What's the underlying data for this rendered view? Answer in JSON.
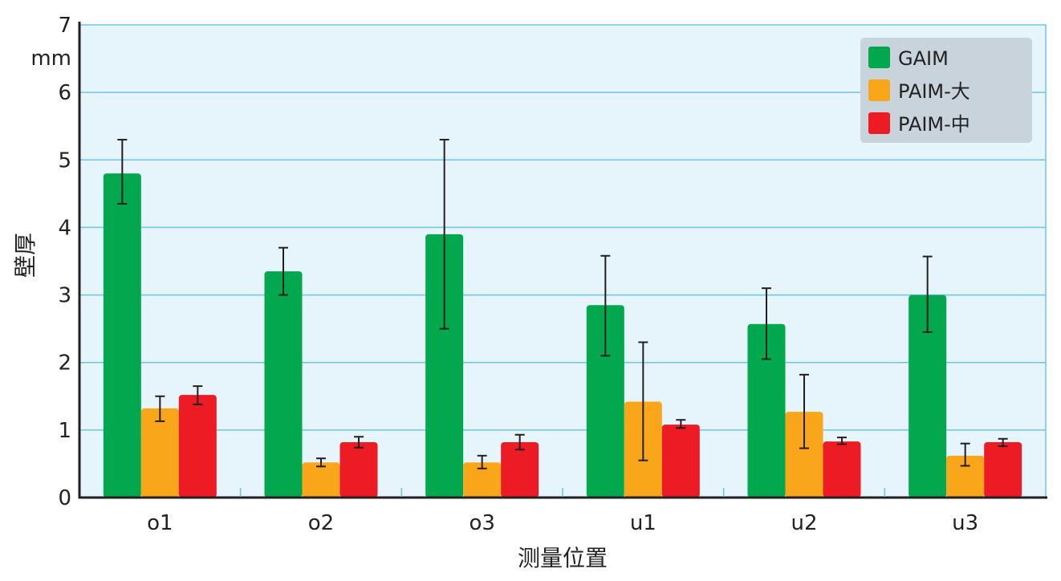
{
  "chart_data": {
    "type": "bar",
    "categories": [
      "o1",
      "o2",
      "o3",
      "u1",
      "u2",
      "u3"
    ],
    "series": [
      {
        "name": "GAIM",
        "color": "#03a84e",
        "values": [
          4.8,
          3.35,
          3.9,
          2.85,
          2.57,
          3.0
        ],
        "errors": [
          [
            4.35,
            5.3
          ],
          [
            3.0,
            3.7
          ],
          [
            2.5,
            5.3
          ],
          [
            2.1,
            3.58
          ],
          [
            2.05,
            3.1
          ],
          [
            2.45,
            3.57
          ]
        ]
      },
      {
        "name": "PAIM-大",
        "color": "#faa61a",
        "values": [
          1.32,
          0.52,
          0.52,
          1.42,
          1.27,
          0.62
        ],
        "errors": [
          [
            1.13,
            1.5
          ],
          [
            0.46,
            0.58
          ],
          [
            0.43,
            0.62
          ],
          [
            0.55,
            2.3
          ],
          [
            0.73,
            1.82
          ],
          [
            0.47,
            0.8
          ]
        ]
      },
      {
        "name": "PAIM-中",
        "color": "#ed1c24",
        "values": [
          1.52,
          0.82,
          0.82,
          1.08,
          0.83,
          0.82
        ],
        "errors": [
          [
            1.38,
            1.65
          ],
          [
            0.74,
            0.9
          ],
          [
            0.71,
            0.93
          ],
          [
            1.03,
            1.15
          ],
          [
            0.79,
            0.89
          ],
          [
            0.76,
            0.87
          ]
        ]
      }
    ],
    "ylim": [
      0,
      7
    ],
    "yticks": [
      0,
      1,
      2,
      3,
      4,
      5,
      6,
      7
    ],
    "yunit": "mm",
    "ylabel": "壁厚",
    "xlabel": "测量位置",
    "grid": true,
    "legend_position": "top-right",
    "plot_background": "#e6f4fb",
    "grid_color": "#6cc5e8",
    "legend_background": "#c8d3dc"
  }
}
